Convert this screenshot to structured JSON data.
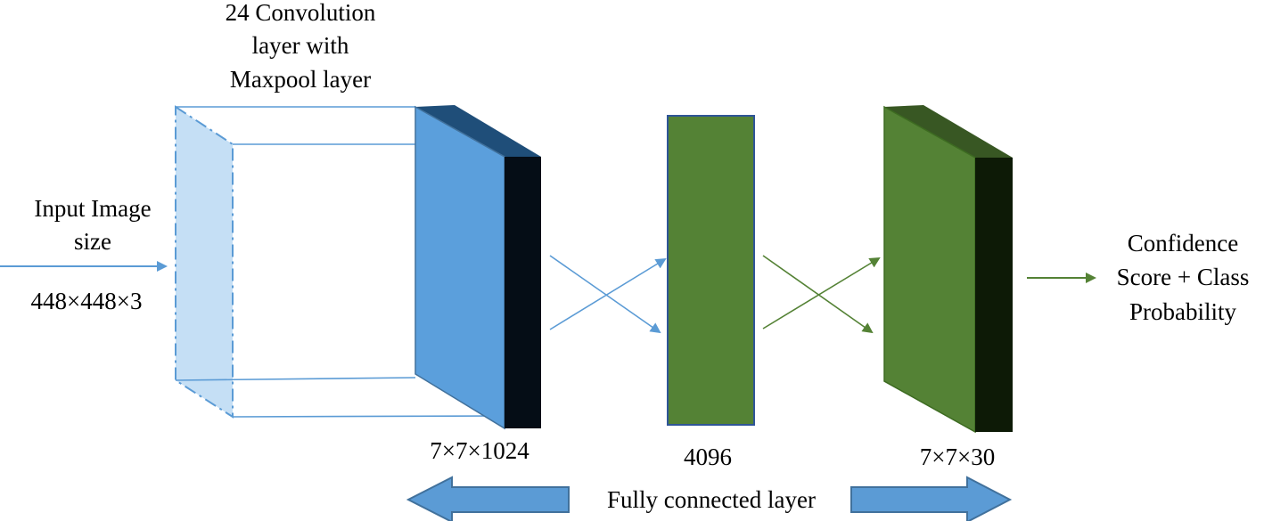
{
  "colors": {
    "input_plane": "#c5dff5",
    "input_edge": "#5b9bd5",
    "conv_front": "#5b9fdc",
    "conv_top": "#1f4e79",
    "conv_side": "#050d16",
    "fc_green": "#548235",
    "fc_edge": "#2f5597",
    "green_top": "#385723",
    "green_side": "#0d1a06",
    "blue_arrow": "#5b9bd5",
    "green_arrow": "#548235",
    "big_arrow_fill": "#5b9bd5",
    "big_arrow_edge": "#41719c"
  },
  "labels": {
    "conv_title_line1": "24 Convolution",
    "conv_title_line2": "layer with",
    "conv_title_line3": "Maxpool layer",
    "input_line1": "Input Image",
    "input_line2": "size",
    "input_dims": "448×448×3",
    "conv_dims": "7×7×1024",
    "fc_dims": "4096",
    "out_dims": "7×7×30",
    "output_line1": "Confidence",
    "output_line2": "Score + Class",
    "output_line3": "Probability",
    "fc_caption": "Fully connected layer"
  }
}
